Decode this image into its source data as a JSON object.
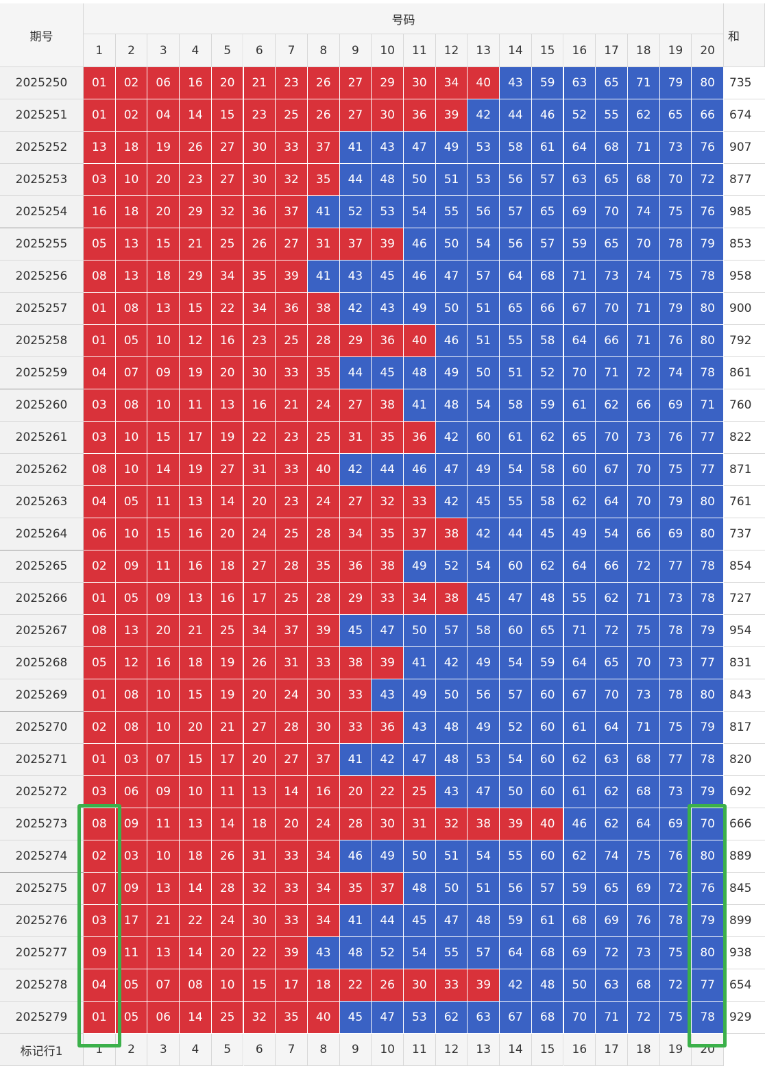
{
  "header": {
    "period": "期号",
    "group": "号码",
    "sum": "和",
    "columns": [
      "1",
      "2",
      "3",
      "4",
      "5",
      "6",
      "7",
      "8",
      "9",
      "10",
      "11",
      "12",
      "13",
      "14",
      "15",
      "16",
      "17",
      "18",
      "19",
      "20"
    ]
  },
  "rows": [
    {
      "period": "2025250",
      "numbers": [
        "01",
        "02",
        "06",
        "16",
        "20",
        "21",
        "23",
        "26",
        "27",
        "29",
        "30",
        "34",
        "40",
        "43",
        "59",
        "63",
        "65",
        "71",
        "79",
        "80"
      ],
      "sum": 735
    },
    {
      "period": "2025251",
      "numbers": [
        "01",
        "02",
        "04",
        "14",
        "15",
        "23",
        "25",
        "26",
        "27",
        "30",
        "36",
        "39",
        "42",
        "44",
        "46",
        "52",
        "55",
        "62",
        "65",
        "66"
      ],
      "sum": 674
    },
    {
      "period": "2025252",
      "numbers": [
        "13",
        "18",
        "19",
        "26",
        "27",
        "30",
        "33",
        "37",
        "41",
        "43",
        "47",
        "49",
        "53",
        "58",
        "61",
        "64",
        "68",
        "71",
        "73",
        "76"
      ],
      "sum": 907
    },
    {
      "period": "2025253",
      "numbers": [
        "03",
        "10",
        "20",
        "23",
        "27",
        "30",
        "32",
        "35",
        "44",
        "48",
        "50",
        "51",
        "53",
        "56",
        "57",
        "63",
        "65",
        "68",
        "70",
        "72"
      ],
      "sum": 877
    },
    {
      "period": "2025254",
      "numbers": [
        "16",
        "18",
        "20",
        "29",
        "32",
        "36",
        "37",
        "41",
        "52",
        "53",
        "54",
        "55",
        "56",
        "57",
        "65",
        "69",
        "70",
        "74",
        "75",
        "76"
      ],
      "sum": 985
    },
    {
      "period": "2025255",
      "numbers": [
        "05",
        "13",
        "15",
        "21",
        "25",
        "26",
        "27",
        "31",
        "37",
        "39",
        "46",
        "50",
        "54",
        "56",
        "57",
        "59",
        "65",
        "70",
        "78",
        "79"
      ],
      "sum": 853
    },
    {
      "period": "2025256",
      "numbers": [
        "08",
        "13",
        "18",
        "29",
        "34",
        "35",
        "39",
        "41",
        "43",
        "45",
        "46",
        "47",
        "57",
        "64",
        "68",
        "71",
        "73",
        "74",
        "75",
        "78"
      ],
      "sum": 958
    },
    {
      "period": "2025257",
      "numbers": [
        "01",
        "08",
        "13",
        "15",
        "22",
        "34",
        "36",
        "38",
        "42",
        "43",
        "49",
        "50",
        "51",
        "65",
        "66",
        "67",
        "70",
        "71",
        "79",
        "80"
      ],
      "sum": 900
    },
    {
      "period": "2025258",
      "numbers": [
        "01",
        "05",
        "10",
        "12",
        "16",
        "23",
        "25",
        "28",
        "29",
        "36",
        "40",
        "46",
        "51",
        "55",
        "58",
        "64",
        "66",
        "71",
        "76",
        "80"
      ],
      "sum": 792
    },
    {
      "period": "2025259",
      "numbers": [
        "04",
        "07",
        "09",
        "19",
        "20",
        "30",
        "33",
        "35",
        "44",
        "45",
        "48",
        "49",
        "50",
        "51",
        "52",
        "70",
        "71",
        "72",
        "74",
        "78"
      ],
      "sum": 861
    },
    {
      "period": "2025260",
      "numbers": [
        "03",
        "08",
        "10",
        "11",
        "13",
        "16",
        "21",
        "24",
        "27",
        "38",
        "41",
        "48",
        "54",
        "58",
        "59",
        "61",
        "62",
        "66",
        "69",
        "71"
      ],
      "sum": 760
    },
    {
      "period": "2025261",
      "numbers": [
        "03",
        "10",
        "15",
        "17",
        "19",
        "22",
        "23",
        "25",
        "31",
        "35",
        "36",
        "42",
        "60",
        "61",
        "62",
        "65",
        "70",
        "73",
        "76",
        "77"
      ],
      "sum": 822
    },
    {
      "period": "2025262",
      "numbers": [
        "08",
        "10",
        "14",
        "19",
        "27",
        "31",
        "33",
        "40",
        "42",
        "44",
        "46",
        "47",
        "49",
        "54",
        "58",
        "60",
        "67",
        "70",
        "75",
        "77"
      ],
      "sum": 871
    },
    {
      "period": "2025263",
      "numbers": [
        "04",
        "05",
        "11",
        "13",
        "14",
        "20",
        "23",
        "24",
        "27",
        "32",
        "33",
        "42",
        "45",
        "55",
        "58",
        "62",
        "64",
        "70",
        "79",
        "80"
      ],
      "sum": 761
    },
    {
      "period": "2025264",
      "numbers": [
        "06",
        "10",
        "15",
        "16",
        "20",
        "24",
        "25",
        "28",
        "34",
        "35",
        "37",
        "38",
        "42",
        "44",
        "45",
        "49",
        "54",
        "66",
        "69",
        "80"
      ],
      "sum": 737
    },
    {
      "period": "2025265",
      "numbers": [
        "02",
        "09",
        "11",
        "16",
        "18",
        "27",
        "28",
        "35",
        "36",
        "38",
        "49",
        "52",
        "54",
        "60",
        "62",
        "64",
        "66",
        "72",
        "77",
        "78"
      ],
      "sum": 854
    },
    {
      "period": "2025266",
      "numbers": [
        "01",
        "05",
        "09",
        "13",
        "16",
        "17",
        "25",
        "28",
        "29",
        "33",
        "34",
        "38",
        "45",
        "47",
        "48",
        "55",
        "62",
        "71",
        "73",
        "78"
      ],
      "sum": 727
    },
    {
      "period": "2025267",
      "numbers": [
        "08",
        "13",
        "20",
        "21",
        "25",
        "34",
        "37",
        "39",
        "45",
        "47",
        "50",
        "57",
        "58",
        "60",
        "65",
        "71",
        "72",
        "75",
        "78",
        "79"
      ],
      "sum": 954
    },
    {
      "period": "2025268",
      "numbers": [
        "05",
        "12",
        "16",
        "18",
        "19",
        "26",
        "31",
        "33",
        "38",
        "39",
        "41",
        "42",
        "49",
        "54",
        "59",
        "64",
        "65",
        "70",
        "73",
        "77"
      ],
      "sum": 831
    },
    {
      "period": "2025269",
      "numbers": [
        "01",
        "08",
        "10",
        "15",
        "19",
        "20",
        "24",
        "30",
        "33",
        "43",
        "49",
        "50",
        "56",
        "57",
        "60",
        "67",
        "70",
        "73",
        "78",
        "80"
      ],
      "sum": 843
    },
    {
      "period": "2025270",
      "numbers": [
        "02",
        "08",
        "10",
        "20",
        "21",
        "27",
        "28",
        "30",
        "33",
        "36",
        "43",
        "48",
        "49",
        "52",
        "60",
        "61",
        "64",
        "71",
        "75",
        "79"
      ],
      "sum": 817
    },
    {
      "period": "2025271",
      "numbers": [
        "01",
        "03",
        "07",
        "15",
        "17",
        "20",
        "27",
        "37",
        "41",
        "42",
        "47",
        "48",
        "53",
        "54",
        "60",
        "62",
        "63",
        "68",
        "77",
        "78"
      ],
      "sum": 820
    },
    {
      "period": "2025272",
      "numbers": [
        "03",
        "06",
        "09",
        "10",
        "11",
        "13",
        "14",
        "16",
        "20",
        "22",
        "25",
        "43",
        "47",
        "50",
        "60",
        "61",
        "62",
        "68",
        "73",
        "79"
      ],
      "sum": 692
    },
    {
      "period": "2025273",
      "numbers": [
        "08",
        "09",
        "11",
        "13",
        "14",
        "18",
        "20",
        "24",
        "28",
        "30",
        "31",
        "32",
        "38",
        "39",
        "40",
        "46",
        "62",
        "64",
        "69",
        "70"
      ],
      "sum": 666
    },
    {
      "period": "2025274",
      "numbers": [
        "02",
        "03",
        "10",
        "18",
        "26",
        "31",
        "33",
        "34",
        "46",
        "49",
        "50",
        "51",
        "54",
        "55",
        "60",
        "62",
        "74",
        "75",
        "76",
        "80"
      ],
      "sum": 889
    },
    {
      "period": "2025275",
      "numbers": [
        "07",
        "09",
        "13",
        "14",
        "28",
        "32",
        "33",
        "34",
        "35",
        "37",
        "48",
        "50",
        "51",
        "56",
        "57",
        "59",
        "65",
        "69",
        "72",
        "76"
      ],
      "sum": 845
    },
    {
      "period": "2025276",
      "numbers": [
        "03",
        "17",
        "21",
        "22",
        "24",
        "30",
        "33",
        "34",
        "41",
        "44",
        "45",
        "47",
        "48",
        "59",
        "61",
        "68",
        "69",
        "76",
        "78",
        "79"
      ],
      "sum": 899
    },
    {
      "period": "2025277",
      "numbers": [
        "09",
        "11",
        "13",
        "14",
        "20",
        "22",
        "39",
        "43",
        "48",
        "52",
        "54",
        "55",
        "57",
        "64",
        "68",
        "69",
        "72",
        "73",
        "75",
        "80"
      ],
      "sum": 938
    },
    {
      "period": "2025278",
      "numbers": [
        "04",
        "05",
        "07",
        "08",
        "10",
        "15",
        "17",
        "18",
        "22",
        "26",
        "30",
        "33",
        "39",
        "42",
        "48",
        "50",
        "63",
        "68",
        "72",
        "77"
      ],
      "sum": 654
    },
    {
      "period": "2025279",
      "numbers": [
        "01",
        "05",
        "06",
        "14",
        "25",
        "32",
        "35",
        "40",
        "45",
        "47",
        "53",
        "62",
        "63",
        "67",
        "68",
        "70",
        "71",
        "72",
        "75",
        "78"
      ],
      "sum": 929
    }
  ],
  "footer": {
    "label": "标记行1",
    "columns": [
      "1",
      "2",
      "3",
      "4",
      "5",
      "6",
      "7",
      "8",
      "9",
      "10",
      "11",
      "12",
      "13",
      "14",
      "15",
      "16",
      "17",
      "18",
      "19",
      "20"
    ]
  }
}
